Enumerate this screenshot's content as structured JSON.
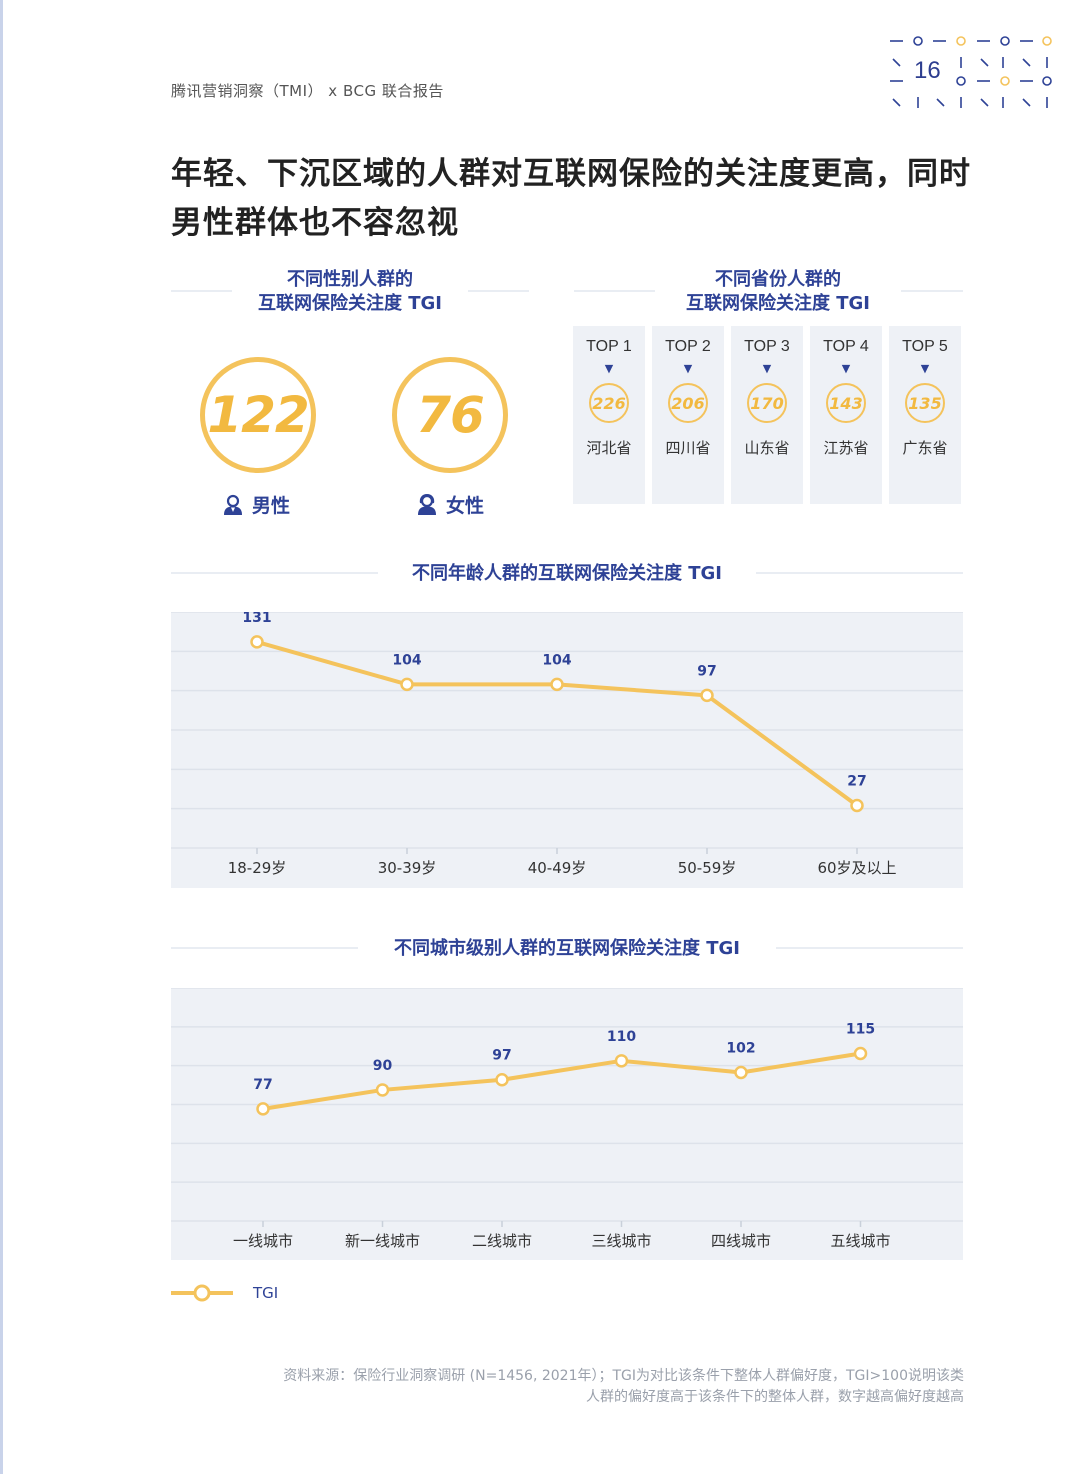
{
  "header": {
    "report": "腾讯营销洞察（TMI） x BCG 联合报告",
    "page_number": "16"
  },
  "title": "年轻、下沉区域的人群对互联网保险的关注度更高，同时男性群体也不容忽视",
  "gender_section": {
    "title_line1": "不同性别人群的",
    "title_line2": "互联网保险关注度 TGI",
    "male": {
      "value": "122",
      "label": "男性"
    },
    "female": {
      "value": "76",
      "label": "女性"
    }
  },
  "province_section": {
    "title_line1": "不同省份人群的",
    "title_line2": "互联网保险关注度 TGI",
    "items": [
      {
        "rank": "TOP 1",
        "value": "226",
        "province": "河北省"
      },
      {
        "rank": "TOP 2",
        "value": "206",
        "province": "四川省"
      },
      {
        "rank": "TOP 3",
        "value": "170",
        "province": "山东省"
      },
      {
        "rank": "TOP 4",
        "value": "143",
        "province": "江苏省"
      },
      {
        "rank": "TOP 5",
        "value": "135",
        "province": "广东省"
      }
    ]
  },
  "chart_data": [
    {
      "type": "line",
      "title": "不同年龄人群的互联网保险关注度 TGI",
      "categories": [
        "18-29岁",
        "30-39岁",
        "40-49岁",
        "50-59岁",
        "60岁及以上"
      ],
      "series": [
        {
          "name": "TGI",
          "values": [
            131,
            104,
            104,
            97,
            27
          ]
        }
      ],
      "ylim": [
        0,
        150
      ],
      "grid": true,
      "color": "#f4c35c"
    },
    {
      "type": "line",
      "title": "不同城市级别人群的互联网保险关注度 TGI",
      "categories": [
        "一线城市",
        "新一线城市",
        "二线城市",
        "三线城市",
        "四线城市",
        "五线城市"
      ],
      "series": [
        {
          "name": "TGI",
          "values": [
            77,
            90,
            97,
            110,
            102,
            115
          ]
        }
      ],
      "ylim": [
        0,
        160
      ],
      "grid": true,
      "color": "#f4c35c"
    }
  ],
  "legend": {
    "label": "TGI"
  },
  "footnote": {
    "line1": "资料来源：保险行业洞察调研 (N=1456, 2021年）；TGI为对比该条件下整体人群偏好度，TGI>100说明该类",
    "line2": "人群的偏好度高于该条件下的整体人群，数字越高偏好度越高"
  }
}
